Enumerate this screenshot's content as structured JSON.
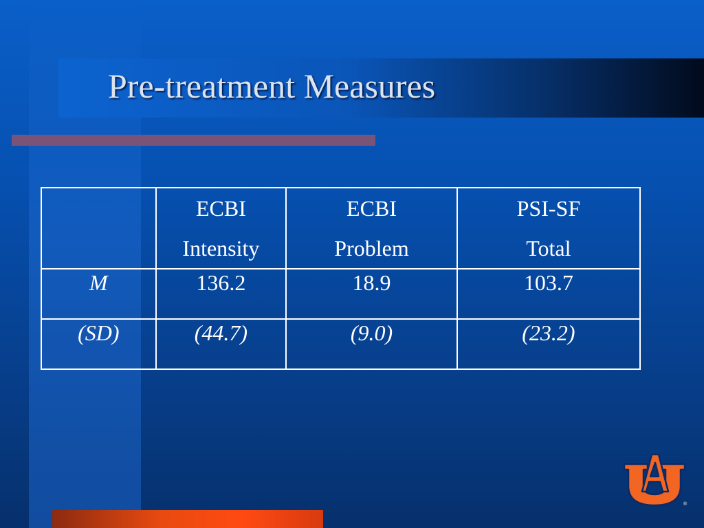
{
  "slide": {
    "title": "Pre-treatment Measures"
  },
  "table": {
    "headers": [
      {
        "line1": "",
        "line2": ""
      },
      {
        "line1": "ECBI",
        "line2": "Intensity"
      },
      {
        "line1": "ECBI",
        "line2": "Problem"
      },
      {
        "line1": "PSI-SF",
        "line2": "Total"
      }
    ],
    "rows": [
      {
        "label": "M",
        "values": [
          "136.2",
          "18.9",
          "103.7"
        ]
      },
      {
        "label": "(SD)",
        "values": [
          "(44.7)",
          "(9.0)",
          "(23.2)"
        ]
      }
    ]
  },
  "logo": {
    "text": "AU",
    "mark": "®",
    "colors": {
      "fill": "#f26522",
      "outline": "#0b2a66"
    }
  },
  "colors": {
    "background": "#0650b0",
    "accent_bar": "#7a5478",
    "bottom_bar": "#ff4a12",
    "title_text": "#dbe4ef"
  }
}
